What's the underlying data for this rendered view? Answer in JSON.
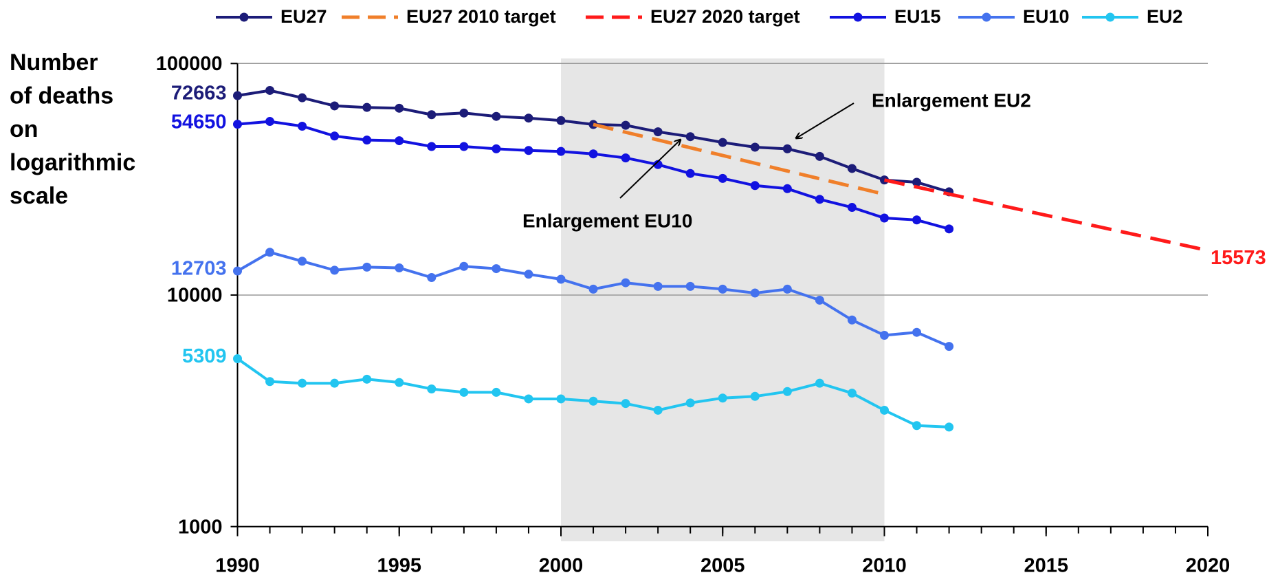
{
  "chart_data": {
    "type": "line",
    "ylabel": [
      "Number",
      "of deaths",
      "on",
      "logarithmic",
      "scale"
    ],
    "x": [
      1990,
      1991,
      1992,
      1993,
      1994,
      1995,
      1996,
      1997,
      1998,
      1999,
      2000,
      2001,
      2002,
      2003,
      2004,
      2005,
      2006,
      2007,
      2008,
      2009,
      2010,
      2011,
      2012
    ],
    "series": [
      {
        "name": "EU27",
        "color": "#1c1c78",
        "marker": true,
        "dashed": false,
        "data_label": "start",
        "values": [
          72663,
          76500,
          71100,
          65600,
          64600,
          64100,
          60100,
          61100,
          59100,
          58100,
          56700,
          54500,
          54100,
          50700,
          48300,
          45600,
          43500,
          42800,
          39700,
          35200,
          31400,
          30700,
          27900
        ]
      },
      {
        "name": "EU27 2010 target",
        "color": "#f07f2a",
        "marker": false,
        "dashed": true,
        "x": [
          2001,
          2010
        ],
        "values": [
          54500,
          27250
        ]
      },
      {
        "name": "EU27 2020 target",
        "color": "#ff1a1a",
        "marker": false,
        "dashed": true,
        "data_label": "end",
        "x": [
          2010,
          2020
        ],
        "values": [
          31400,
          15573
        ]
      },
      {
        "name": "EU15",
        "color": "#1212e0",
        "marker": true,
        "dashed": false,
        "data_label": "start",
        "values": [
          54650,
          56200,
          53600,
          48600,
          46700,
          46400,
          43800,
          43800,
          42800,
          42100,
          41700,
          40700,
          39100,
          36600,
          33500,
          31900,
          29700,
          28800,
          25900,
          23900,
          21500,
          21100,
          19300
        ]
      },
      {
        "name": "EU10",
        "color": "#4472ee",
        "marker": true,
        "dashed": false,
        "data_label": "start",
        "values": [
          12703,
          15300,
          14000,
          12800,
          13200,
          13100,
          11900,
          13300,
          13000,
          12300,
          11700,
          10600,
          11300,
          10900,
          10900,
          10600,
          10200,
          10600,
          9500,
          7800,
          6700,
          6900,
          6000
        ]
      },
      {
        "name": "EU2",
        "color": "#22c5f0",
        "marker": true,
        "dashed": false,
        "data_label": "start",
        "values": [
          5309,
          4230,
          4160,
          4160,
          4330,
          4190,
          3930,
          3800,
          3800,
          3560,
          3560,
          3480,
          3400,
          3180,
          3420,
          3590,
          3650,
          3830,
          4160,
          3770,
          3180,
          2730,
          2690
        ]
      }
    ],
    "xlim": [
      1990,
      2020
    ],
    "xticks": [
      1990,
      1995,
      2000,
      2005,
      2010,
      2015,
      2020
    ],
    "ylim": [
      1000,
      100000
    ],
    "yticks": [
      1000,
      10000,
      100000
    ],
    "log_y": true,
    "grid": true,
    "legend": "top",
    "shaded_range": [
      2000,
      2010
    ],
    "annotations": [
      {
        "text": "Enlargement EU2",
        "x": 2007
      },
      {
        "text": "Enlargement EU10",
        "x": 2004
      }
    ]
  }
}
